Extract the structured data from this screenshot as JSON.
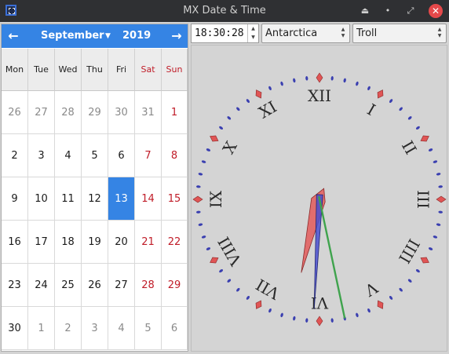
{
  "window": {
    "title": "MX Date & Time"
  },
  "calendar": {
    "month": "September",
    "year": "2019",
    "weekdays": [
      "Mon",
      "Tue",
      "Wed",
      "Thu",
      "Fri",
      "Sat",
      "Sun"
    ],
    "weeks": [
      [
        "26",
        "27",
        "28",
        "29",
        "30",
        "31",
        "1"
      ],
      [
        "2",
        "3",
        "4",
        "5",
        "6",
        "7",
        "8"
      ],
      [
        "9",
        "10",
        "11",
        "12",
        "13",
        "14",
        "15"
      ],
      [
        "16",
        "17",
        "18",
        "19",
        "20",
        "21",
        "22"
      ],
      [
        "23",
        "24",
        "25",
        "26",
        "27",
        "28",
        "29"
      ],
      [
        "30",
        "1",
        "2",
        "3",
        "4",
        "5",
        "6"
      ]
    ],
    "selected_day": "13"
  },
  "time": {
    "value": "18:30:28"
  },
  "timezone": {
    "region": "Antarctica",
    "city": "Troll"
  },
  "clock": {
    "numerals": [
      "XII",
      "I",
      "II",
      "III",
      "IIII",
      "V",
      "VI",
      "VII",
      "VIII",
      "IX",
      "X",
      "XI"
    ],
    "hour": 18,
    "minute": 30,
    "second": 28,
    "colors": {
      "hour_hand": "#e35a5a",
      "minute_hand": "#4a4fd0",
      "second_hand": "#3fa34d",
      "marks": "#3a3fb0",
      "hour_marks": "#e05555"
    }
  },
  "colors": {
    "accent": "#3584e4",
    "weekend": "#c01c28"
  }
}
